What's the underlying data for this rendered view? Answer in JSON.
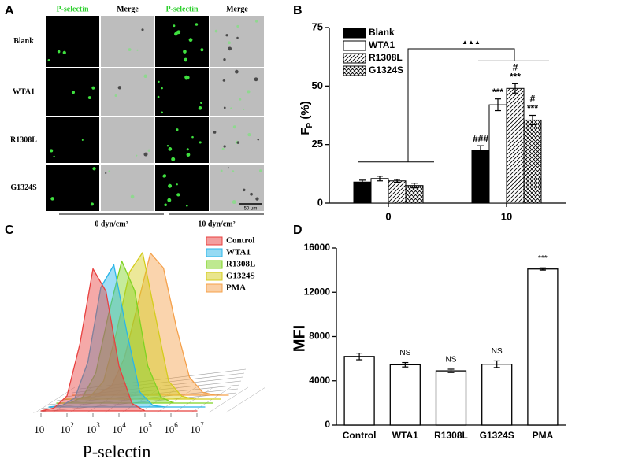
{
  "panel_a": {
    "label": "A",
    "column_headers": [
      "P-selectin",
      "Merge",
      "P-selectin",
      "Merge"
    ],
    "row_labels": [
      "Blank",
      "WTA1",
      "R1308L",
      "G1324S"
    ],
    "conditions": [
      "0 dyn/cm²",
      "10 dyn/cm²"
    ],
    "scale_bar": "50 μm"
  },
  "chart_data": [
    {
      "panel_label": "B",
      "type": "bar",
      "categories": [
        "0",
        "10"
      ],
      "y_label": "F",
      "y_label_subscript": "P",
      "y_label_unit": "(%)",
      "ylim": [
        0,
        75
      ],
      "yticks": [
        0,
        25,
        50,
        75
      ],
      "legend": "top-left",
      "bracket_label": "▲▲▲",
      "series": [
        {
          "name": "Blank",
          "color": "#000000",
          "pattern": "solid",
          "values": [
            9,
            22.5
          ],
          "errors": [
            0.8,
            2
          ],
          "notes": [
            null,
            [
              "###"
            ]
          ]
        },
        {
          "name": "WTA1",
          "color": "#ffffff",
          "pattern": "solid",
          "values": [
            10.5,
            42
          ],
          "errors": [
            1,
            2.5
          ],
          "notes": [
            null,
            [
              "***"
            ]
          ]
        },
        {
          "name": "R1308L",
          "color": "#000000",
          "pattern": "hatch",
          "values": [
            9.5,
            49
          ],
          "errors": [
            0.6,
            2
          ],
          "notes": [
            null,
            [
              "#",
              "***"
            ]
          ]
        },
        {
          "name": "G1324S",
          "color": "#000000",
          "pattern": "crosshatch",
          "values": [
            7.5,
            35.5
          ],
          "errors": [
            1,
            2
          ],
          "notes": [
            null,
            [
              "#",
              "***"
            ]
          ]
        }
      ]
    },
    {
      "panel_label": "C",
      "type": "area",
      "x_label": "P-selectin",
      "x_scale": "log",
      "x": [
        10,
        31.6,
        100,
        316,
        1000,
        3162,
        10000,
        31623,
        100000,
        316228,
        1000000,
        3162278,
        10000000
      ],
      "xlim": [
        10,
        10000000
      ],
      "ylim": [
        0,
        100
      ],
      "xticks": [
        {
          "value": 10,
          "label": "10",
          "exponent": "1"
        },
        {
          "value": 100,
          "label": "10",
          "exponent": "2"
        },
        {
          "value": 1000,
          "label": "10",
          "exponent": "3"
        },
        {
          "value": 10000,
          "label": "10",
          "exponent": "4"
        },
        {
          "value": 100000,
          "label": "10",
          "exponent": "5"
        },
        {
          "value": 1000000,
          "label": "10",
          "exponent": "6"
        },
        {
          "value": 10000000,
          "label": "10",
          "exponent": "7"
        }
      ],
      "legend": "top-right",
      "series": [
        {
          "name": "Control",
          "color": "#e8403f",
          "values": [
            0,
            2,
            10,
            45,
            95,
            80,
            30,
            5,
            0,
            0,
            0,
            0,
            0
          ]
        },
        {
          "name": "WTA1",
          "color": "#2bb5e8",
          "values": [
            0,
            1,
            6,
            30,
            80,
            95,
            50,
            10,
            1,
            0,
            0,
            0,
            0
          ]
        },
        {
          "name": "R1308L",
          "color": "#7ed321",
          "values": [
            0,
            0,
            4,
            20,
            60,
            95,
            75,
            25,
            4,
            0,
            0,
            0,
            0
          ]
        },
        {
          "name": "G1324S",
          "color": "#d4cc1c",
          "values": [
            0,
            0,
            2,
            12,
            45,
            85,
            98,
            55,
            12,
            2,
            0,
            0,
            0
          ]
        },
        {
          "name": "PMA",
          "color": "#f5a04a",
          "values": [
            0,
            0,
            1,
            6,
            25,
            60,
            95,
            85,
            45,
            12,
            2,
            0,
            0
          ]
        }
      ]
    },
    {
      "panel_label": "D",
      "type": "bar",
      "categories": [
        "Control",
        "WTA1",
        "R1308L",
        "G1324S",
        "PMA"
      ],
      "values": [
        6200,
        5450,
        4900,
        5500,
        14100
      ],
      "errors": [
        300,
        200,
        150,
        300,
        100
      ],
      "notes": [
        null,
        "NS",
        "NS",
        "NS",
        "***"
      ],
      "color": "#ffffff",
      "y_label": "MFI",
      "ylim": [
        0,
        16000
      ],
      "yticks": [
        0,
        4000,
        8000,
        12000,
        16000
      ]
    }
  ]
}
